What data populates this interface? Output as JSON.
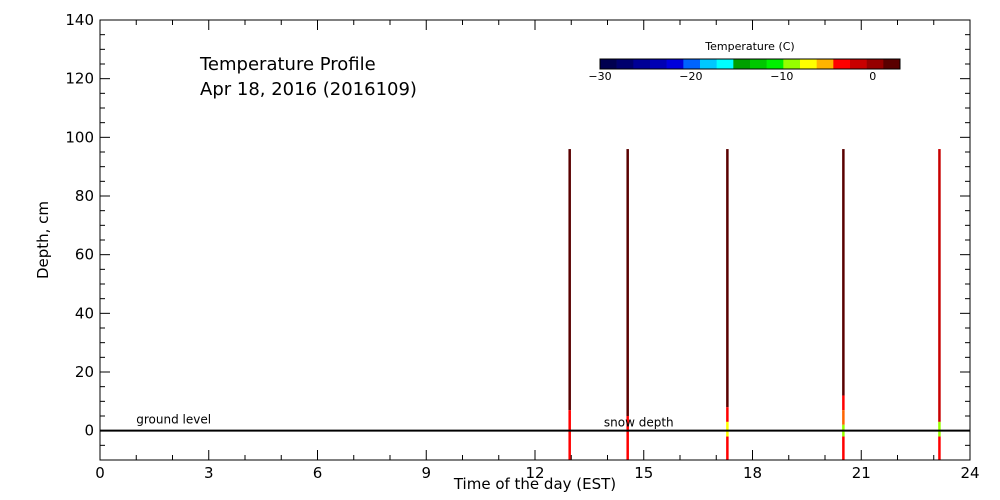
{
  "chart_data": {
    "type": "heatmap",
    "title": "Temperature Profile",
    "subtitle": "Apr 18, 2016 (2016109)",
    "xlabel": "Time of the day (EST)",
    "ylabel": "Depth, cm",
    "xlim": [
      0,
      24
    ],
    "ylim": [
      -10,
      140
    ],
    "x_ticks": [
      0,
      3,
      6,
      9,
      12,
      15,
      18,
      21,
      24
    ],
    "y_ticks": [
      0,
      20,
      40,
      60,
      80,
      100,
      120,
      140
    ],
    "x_minor_step": 1,
    "y_minor_step": 5,
    "grid": false,
    "annotations": [
      {
        "text": "ground level",
        "x": 1.0,
        "y": 2.5
      },
      {
        "text": "snow depth",
        "x": 13.9,
        "y": 1.5
      }
    ],
    "ground_level_depth": 0,
    "colorbar": {
      "title": "Temperature (C)",
      "ticks": [
        -30,
        -20,
        -10,
        0
      ],
      "tick_labels": [
        "−30",
        "−20",
        "−10",
        "0"
      ],
      "range": [
        -30,
        3
      ],
      "colors": [
        "#000050",
        "#00006e",
        "#000096",
        "#0000b4",
        "#0000dc",
        "#0064ff",
        "#00c8ff",
        "#00ffff",
        "#00a000",
        "#00c800",
        "#00f000",
        "#96ff00",
        "#ffff00",
        "#ffb400",
        "#ff0000",
        "#c80000",
        "#960000",
        "#5a0000"
      ]
    },
    "profiles": [
      {
        "time": 12.95,
        "segments": [
          {
            "from": 96,
            "to": 7,
            "color": "#5a0000"
          },
          {
            "from": 7,
            "to": -10,
            "color": "#ff0000"
          }
        ]
      },
      {
        "time": 14.55,
        "segments": [
          {
            "from": 96,
            "to": 5,
            "color": "#5a0000"
          },
          {
            "from": 5,
            "to": -10,
            "color": "#ff0000"
          }
        ]
      },
      {
        "time": 17.3,
        "segments": [
          {
            "from": 96,
            "to": 8,
            "color": "#5a0000"
          },
          {
            "from": 8,
            "to": 3,
            "color": "#ff0000"
          },
          {
            "from": 3,
            "to": -2,
            "color": "#ffff00"
          },
          {
            "from": -2,
            "to": -10,
            "color": "#ff0000"
          }
        ]
      },
      {
        "time": 20.5,
        "segments": [
          {
            "from": 96,
            "to": 12,
            "color": "#5a0000"
          },
          {
            "from": 12,
            "to": 7,
            "color": "#ff0000"
          },
          {
            "from": 7,
            "to": 2,
            "color": "#ff6400"
          },
          {
            "from": 2,
            "to": -2,
            "color": "#96ff00"
          },
          {
            "from": -2,
            "to": -10,
            "color": "#ff0000"
          }
        ]
      },
      {
        "time": 23.15,
        "segments": [
          {
            "from": 96,
            "to": 3,
            "color": "#c80000"
          },
          {
            "from": 3,
            "to": -2,
            "color": "#96ff00"
          },
          {
            "from": -2,
            "to": -10,
            "color": "#ff0000"
          }
        ]
      }
    ]
  }
}
